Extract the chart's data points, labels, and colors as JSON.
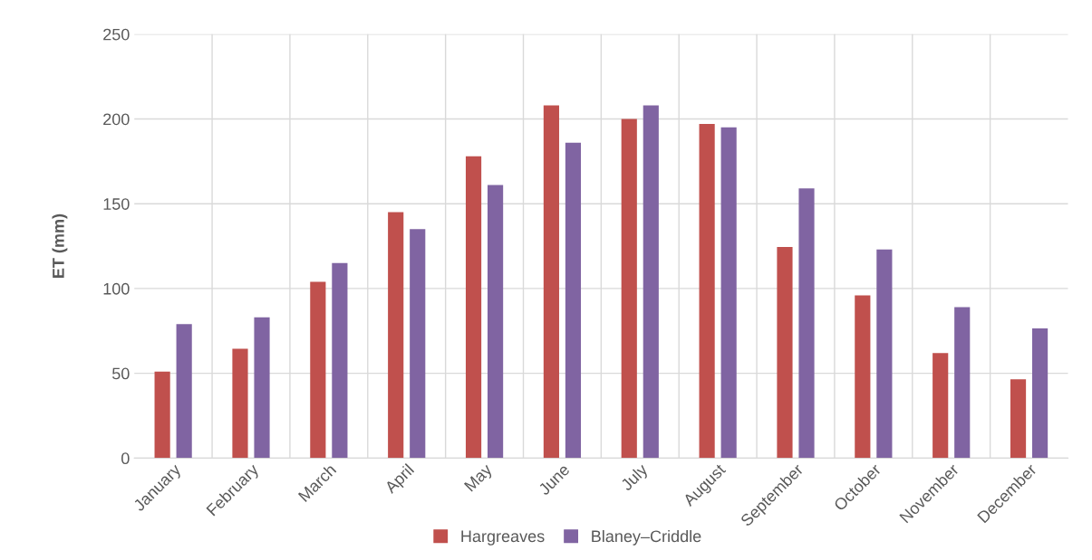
{
  "chart_data": {
    "type": "bar",
    "ylabel": "ET (mm)",
    "categories": [
      "January",
      "February",
      "March",
      "April",
      "May",
      "June",
      "July",
      "August",
      "September",
      "October",
      "November",
      "December"
    ],
    "series": [
      {
        "name": "Hargreaves",
        "color": "#c0504d",
        "values": [
          51,
          64.5,
          104,
          145,
          178,
          208,
          200,
          197,
          124.5,
          96,
          62,
          46.5
        ]
      },
      {
        "name": "Blaney–Criddle",
        "color": "#8064a2",
        "values": [
          79,
          83,
          115,
          135,
          161,
          186,
          208,
          195,
          159,
          123,
          89,
          76.5
        ]
      }
    ],
    "ylim": [
      0,
      250
    ],
    "yticks": [
      0,
      50,
      100,
      150,
      200,
      250
    ],
    "grid": true,
    "legend": "bottom"
  }
}
